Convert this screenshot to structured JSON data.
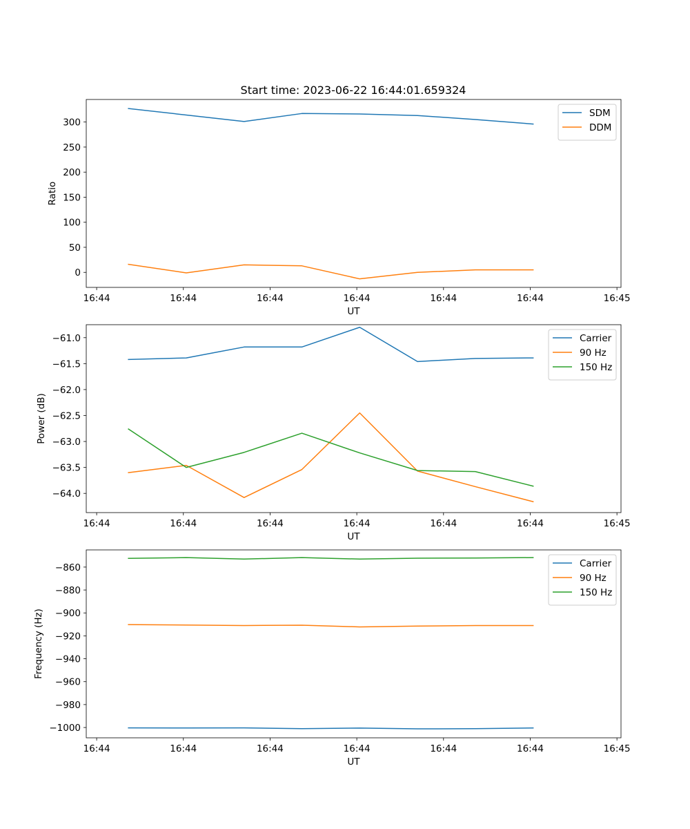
{
  "figure": {
    "title": "Start time: 2023-06-22 16:44:01.659324"
  },
  "chart_data": [
    {
      "type": "line",
      "title": "Start time: 2023-06-22 16:44:01.659324",
      "xlabel": "UT",
      "ylabel": "Ratio",
      "x": [
        1,
        2,
        3,
        4,
        5,
        6,
        7,
        8
      ],
      "xlim": [
        0.27,
        9.52
      ],
      "x_ticks": [
        0.45,
        1.95,
        3.45,
        4.95,
        6.45,
        7.95,
        9.45
      ],
      "x_tick_labels": [
        "16:44",
        "16:44",
        "16:44",
        "16:44",
        "16:44",
        "16:44",
        "16:45"
      ],
      "ylim": [
        -30,
        345
      ],
      "y_ticks": [
        0,
        50,
        100,
        150,
        200,
        250,
        300
      ],
      "y_tick_labels": [
        "0",
        "50",
        "100",
        "150",
        "200",
        "250",
        "300"
      ],
      "legend_position": "upper right",
      "series": [
        {
          "name": "SDM",
          "color": "#1f77b4",
          "values": [
            327,
            314,
            301,
            317,
            316,
            313,
            305,
            296
          ]
        },
        {
          "name": "DDM",
          "color": "#ff7f0e",
          "values": [
            16,
            -1,
            15,
            13,
            -13,
            0,
            5,
            5
          ]
        }
      ]
    },
    {
      "type": "line",
      "title": "",
      "xlabel": "UT",
      "ylabel": "Power (dB)",
      "x": [
        1,
        2,
        3,
        4,
        5,
        6,
        7,
        8
      ],
      "xlim": [
        0.27,
        9.52
      ],
      "x_ticks": [
        0.45,
        1.95,
        3.45,
        4.95,
        6.45,
        7.95,
        9.45
      ],
      "x_tick_labels": [
        "16:44",
        "16:44",
        "16:44",
        "16:44",
        "16:44",
        "16:44",
        "16:45"
      ],
      "ylim": [
        -64.37,
        -60.75
      ],
      "y_ticks": [
        -64.0,
        -63.5,
        -63.0,
        -62.5,
        -62.0,
        -61.5,
        -61.0
      ],
      "y_tick_labels": [
        "−64.0",
        "−63.5",
        "−63.0",
        "−62.5",
        "−62.0",
        "−61.5",
        "−61.0"
      ],
      "legend_position": "upper right",
      "series": [
        {
          "name": "Carrier",
          "color": "#1f77b4",
          "values": [
            -61.42,
            -61.39,
            -61.18,
            -61.18,
            -60.8,
            -61.46,
            -61.4,
            -61.39
          ]
        },
        {
          "name": "90 Hz",
          "color": "#ff7f0e",
          "values": [
            -63.6,
            -63.46,
            -64.08,
            -63.54,
            -62.45,
            -63.57,
            -63.87,
            -64.16
          ]
        },
        {
          "name": "150 Hz",
          "color": "#2ca02c",
          "values": [
            -62.76,
            -63.5,
            -63.21,
            -62.84,
            -63.22,
            -63.56,
            -63.58,
            -63.86
          ]
        }
      ]
    },
    {
      "type": "line",
      "title": "",
      "xlabel": "UT",
      "ylabel": "Frequency (Hz)",
      "x": [
        1,
        2,
        3,
        4,
        5,
        6,
        7,
        8
      ],
      "xlim": [
        0.27,
        9.52
      ],
      "x_ticks": [
        0.45,
        1.95,
        3.45,
        4.95,
        6.45,
        7.95,
        9.45
      ],
      "x_tick_labels": [
        "16:44",
        "16:44",
        "16:44",
        "16:44",
        "16:44",
        "16:44",
        "16:45"
      ],
      "ylim": [
        -1009,
        -845
      ],
      "y_ticks": [
        -1000,
        -980,
        -960,
        -940,
        -920,
        -900,
        -880,
        -860
      ],
      "y_tick_labels": [
        "−1000",
        "−980",
        "−960",
        "−940",
        "−920",
        "−900",
        "−880",
        "−860"
      ],
      "legend_position": "upper right",
      "series": [
        {
          "name": "Carrier",
          "color": "#1f77b4",
          "values": [
            -1000.3,
            -1000.4,
            -1000.3,
            -1001.0,
            -1000.5,
            -1001.2,
            -1001.0,
            -1000.4
          ]
        },
        {
          "name": "90 Hz",
          "color": "#ff7f0e",
          "values": [
            -910.2,
            -910.6,
            -911.0,
            -910.7,
            -912.2,
            -911.5,
            -911.0,
            -911.0
          ]
        },
        {
          "name": "150 Hz",
          "color": "#2ca02c",
          "values": [
            -852.4,
            -851.7,
            -853.0,
            -851.7,
            -853.0,
            -852.2,
            -852.1,
            -851.7
          ]
        }
      ]
    }
  ]
}
